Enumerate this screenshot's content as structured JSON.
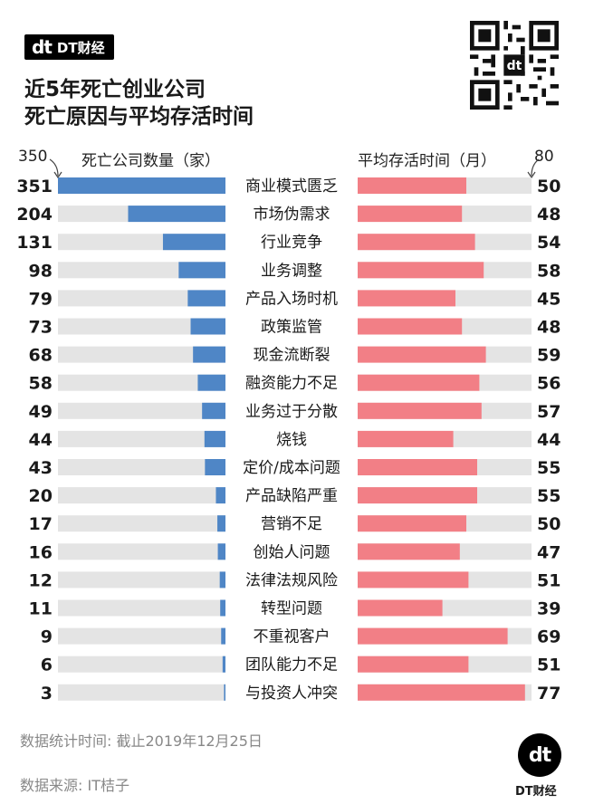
{
  "brand": {
    "mark": "dt",
    "name": "DT财经"
  },
  "title_line1": "近5年死亡创业公司",
  "title_line2": "死亡原因与平均存活时间",
  "footer": {
    "stat_time": "数据统计时间: 截止2019年12月25日",
    "source": "数据来源: IT桔子",
    "brand_name": "DT财经"
  },
  "chart_data": {
    "type": "bar",
    "left_axis": {
      "label": "死亡公司数量（家）",
      "max_label": "350",
      "max": 351,
      "color": "#4f86c6"
    },
    "right_axis": {
      "label": "平均存活时间（月）",
      "max_label": "80",
      "max": 80,
      "color": "#f27f86"
    },
    "track_color": "#e4e4e4",
    "categories": [
      "商业模式匮乏",
      "市场伪需求",
      "行业竞争",
      "业务调整",
      "产品入场时机",
      "政策监管",
      "现金流断裂",
      "融资能力不足",
      "业务过于分散",
      "烧钱",
      "定价/成本问题",
      "产品缺陷严重",
      "营销不足",
      "创始人问题",
      "法律法规风险",
      "转型问题",
      "不重视客户",
      "团队能力不足",
      "与投资人冲突"
    ],
    "series": [
      {
        "name": "死亡公司数量（家）",
        "values": [
          351,
          204,
          131,
          98,
          79,
          73,
          68,
          58,
          49,
          44,
          43,
          20,
          17,
          16,
          12,
          11,
          9,
          6,
          3
        ]
      },
      {
        "name": "平均存活时间（月）",
        "values": [
          50,
          48,
          54,
          58,
          45,
          48,
          59,
          56,
          57,
          44,
          55,
          55,
          50,
          47,
          51,
          39,
          69,
          51,
          77
        ]
      }
    ]
  }
}
